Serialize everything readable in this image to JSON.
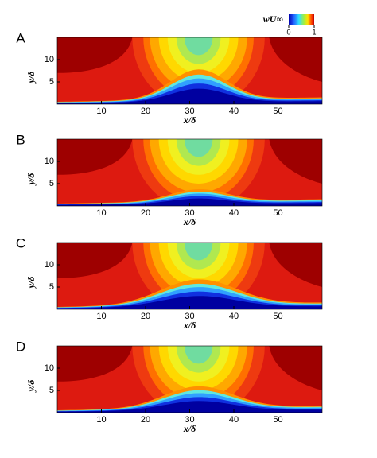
{
  "colorbar": {
    "label": "wU∞",
    "lim": [
      0,
      1
    ],
    "ticks": [
      0,
      1
    ]
  },
  "chart_data": [
    {
      "type": "contour",
      "label": "A",
      "xlabel": "x/δ",
      "ylabel": "y/δ",
      "xlim": [
        0,
        60
      ],
      "ylim": [
        0,
        15
      ],
      "xticks": [
        10,
        20,
        30,
        40,
        50
      ],
      "yticks": [
        5,
        10
      ]
    },
    {
      "type": "contour",
      "label": "B",
      "xlabel": "x/δ",
      "ylabel": "y/δ",
      "xlim": [
        0,
        60
      ],
      "ylim": [
        0,
        15
      ],
      "xticks": [
        10,
        20,
        30,
        40,
        50
      ],
      "yticks": [
        5,
        10
      ]
    },
    {
      "type": "contour",
      "label": "C",
      "xlabel": "x/δ",
      "ylabel": "y/δ",
      "xlim": [
        0,
        60
      ],
      "ylim": [
        0,
        15
      ],
      "xticks": [
        10,
        20,
        30,
        40,
        50
      ],
      "yticks": [
        5,
        10
      ]
    },
    {
      "type": "contour",
      "label": "D",
      "xlabel": "x/δ",
      "ylabel": "y/δ",
      "xlim": [
        0,
        60
      ],
      "ylim": [
        0,
        15
      ],
      "xticks": [
        10,
        20,
        30,
        40,
        50
      ],
      "yticks": [
        5,
        10
      ]
    }
  ]
}
